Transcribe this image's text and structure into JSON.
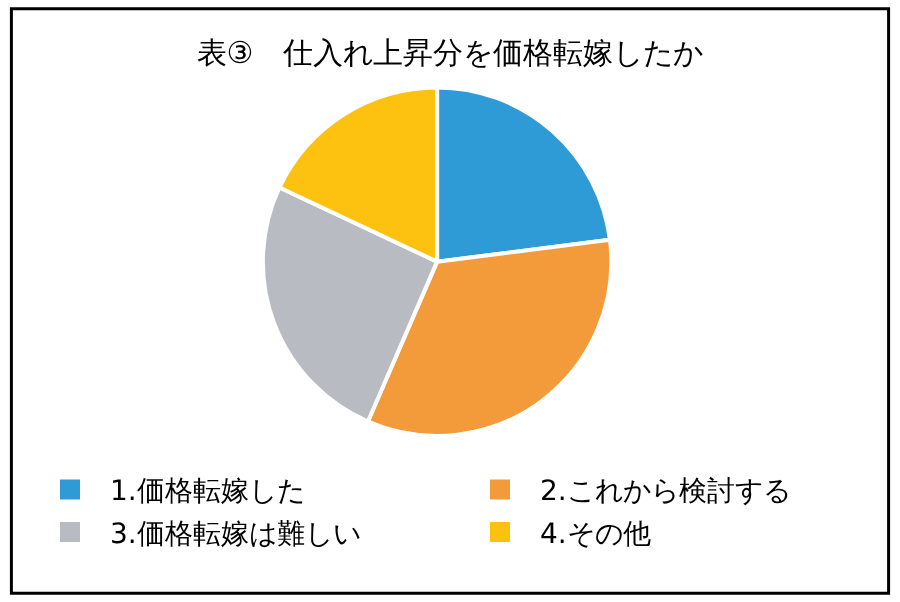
{
  "chart_data": {
    "type": "pie",
    "title": "表③　仕入れ上昇分を価格転嫁したか",
    "categories": [
      "1.価格転嫁した",
      "2.これから検討する",
      "3.価格転嫁は難しい",
      "4.その他"
    ],
    "values": [
      23,
      33.5,
      25.5,
      18
    ],
    "colors": [
      "#2e9bd6",
      "#f39b3a",
      "#b8bcc2",
      "#fcc20f"
    ],
    "legend": "bottom"
  }
}
